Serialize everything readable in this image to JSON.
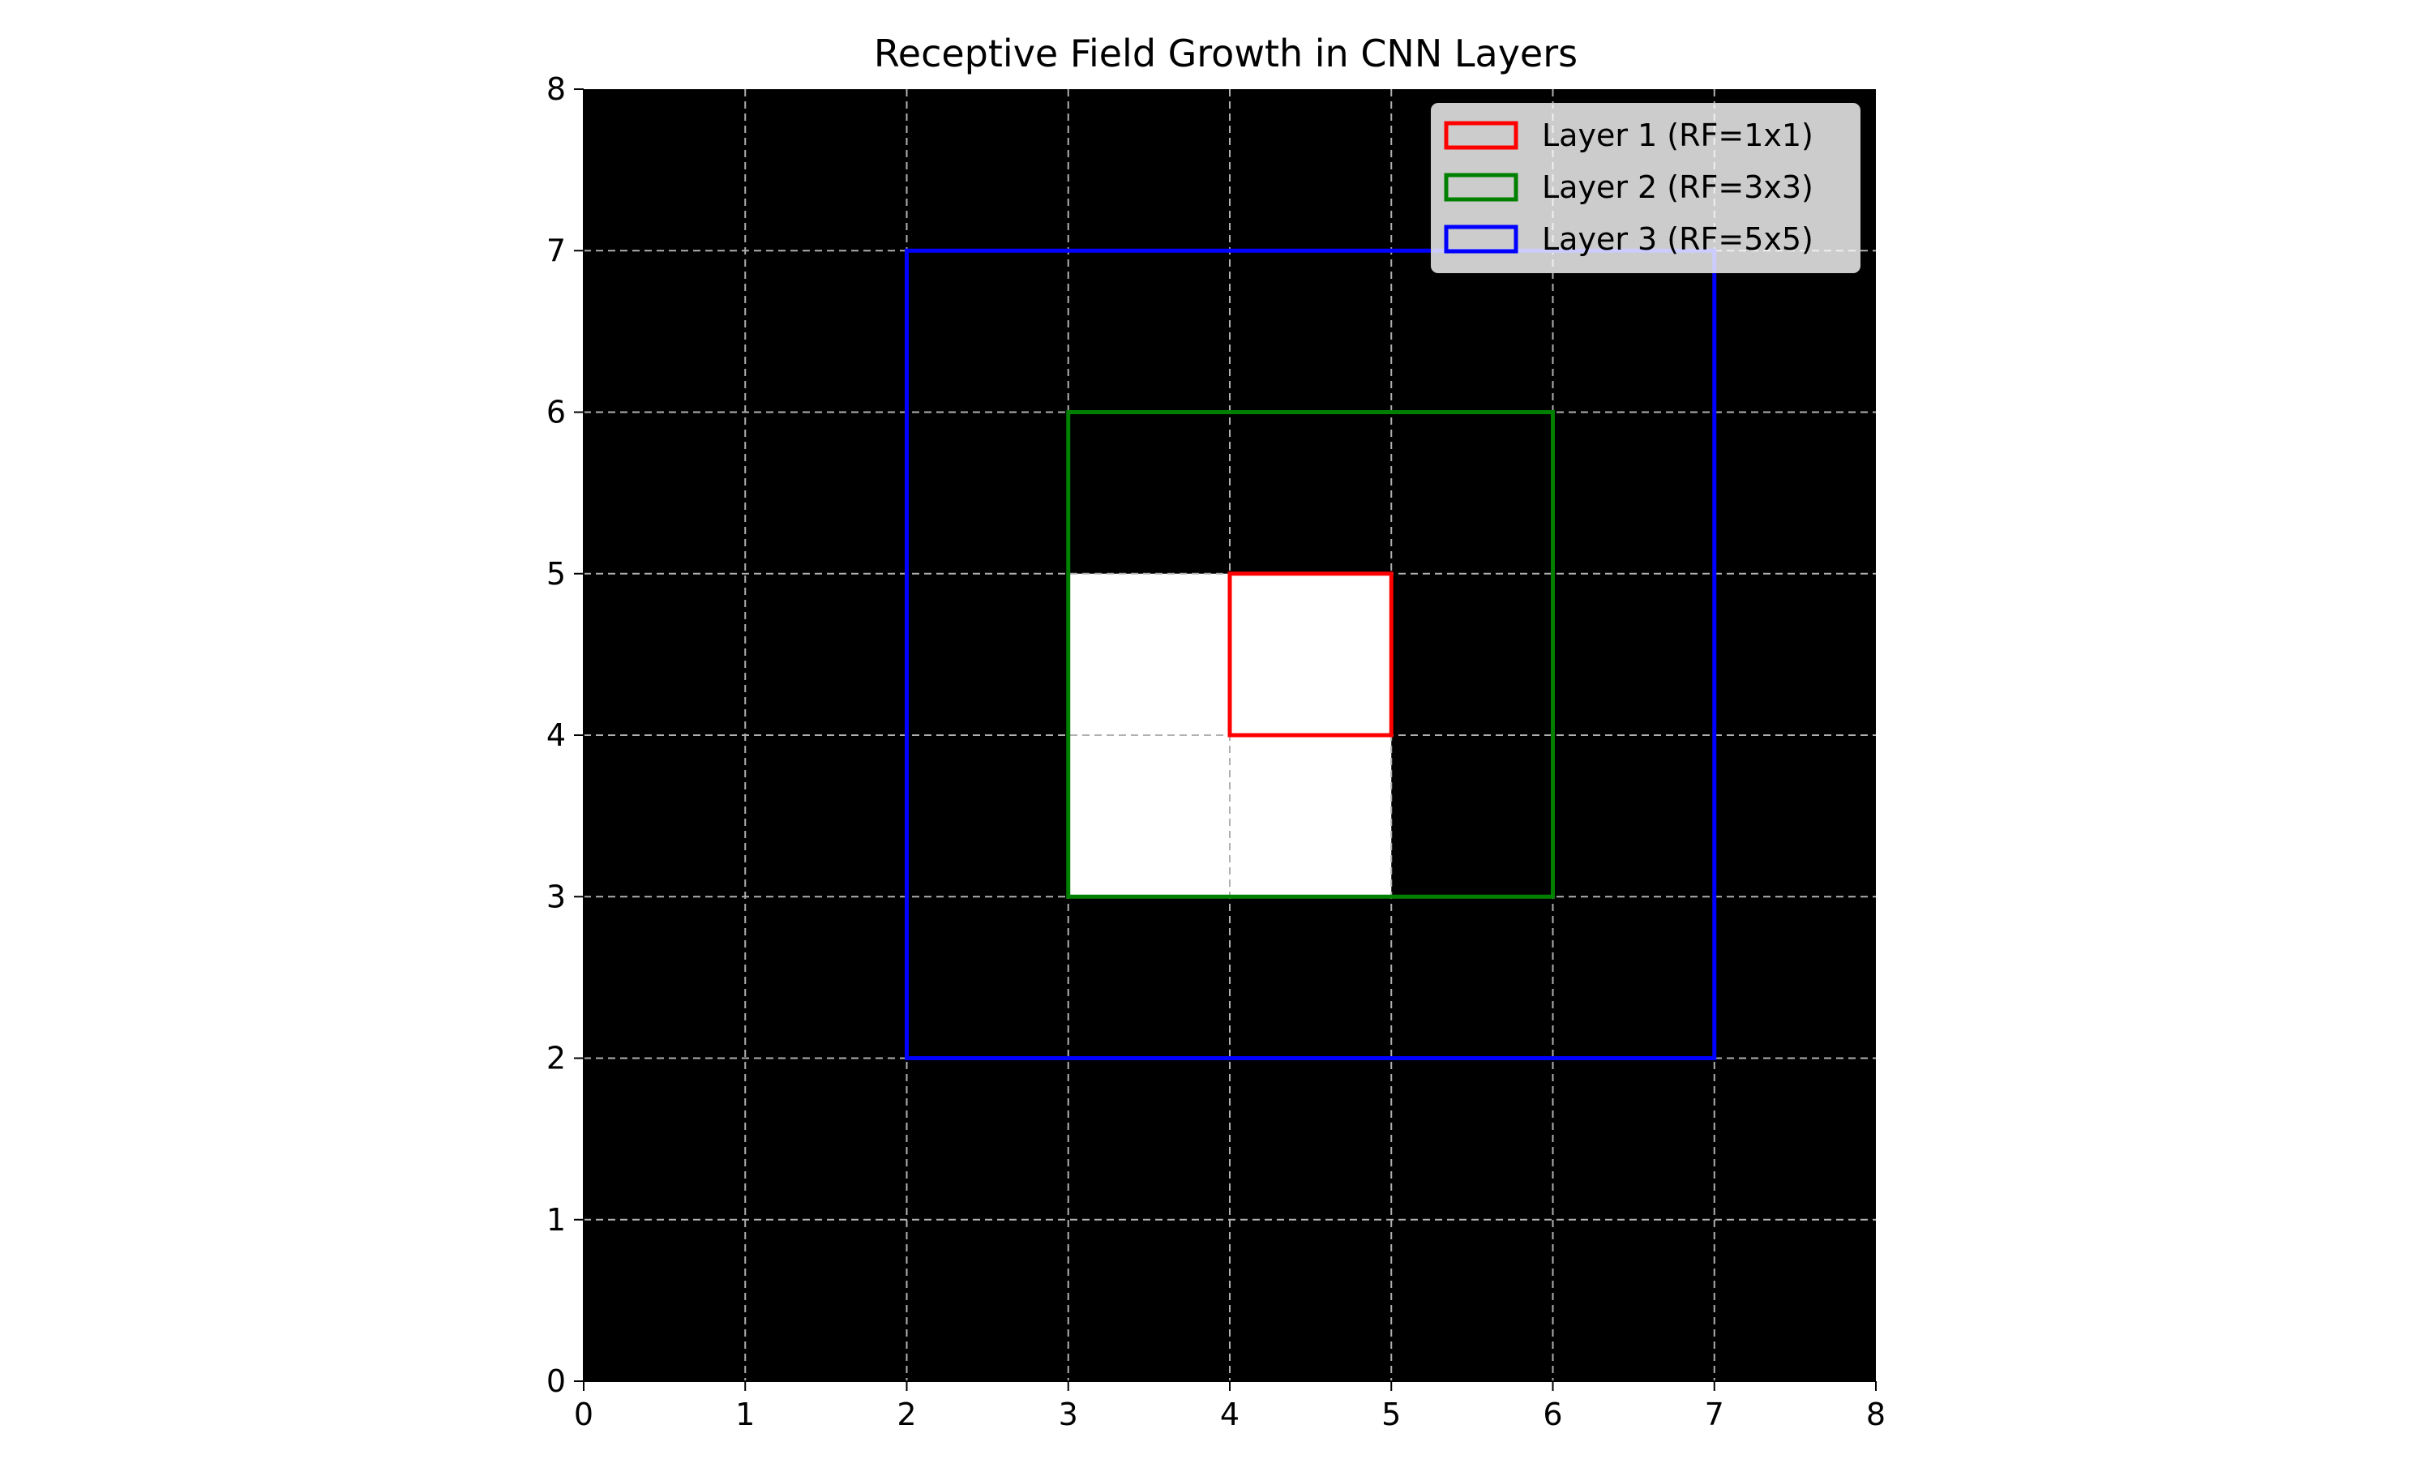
{
  "chart_data": {
    "type": "heatmap",
    "title": "Receptive Field Growth in CNN Layers",
    "xlabel": "",
    "ylabel": "",
    "xlim": [
      0,
      8
    ],
    "ylim": [
      0,
      8
    ],
    "xticks": [
      "0",
      "1",
      "2",
      "3",
      "4",
      "5",
      "6",
      "7",
      "8"
    ],
    "yticks": [
      "0",
      "1",
      "2",
      "3",
      "4",
      "5",
      "6",
      "7",
      "8"
    ],
    "grid": true,
    "grid_style": "dashed",
    "background_color": "#000000",
    "grid_color": "#b0b0b0",
    "cell_values": {
      "description_cols": "x from 0 to 8, y from 0 to 8, value 1 = white, 0 = black",
      "white_cells": [
        {
          "x": [
            3,
            4
          ],
          "y": [
            3,
            4
          ]
        },
        {
          "x": [
            4,
            5
          ],
          "y": [
            3,
            4
          ]
        },
        {
          "x": [
            3,
            4
          ],
          "y": [
            4,
            5
          ]
        },
        {
          "x": [
            4,
            5
          ],
          "y": [
            4,
            5
          ]
        }
      ]
    },
    "rectangles": [
      {
        "name": "Layer 1 (RF=1x1)",
        "x": [
          4,
          5
        ],
        "y": [
          4,
          5
        ],
        "color": "#ff0000"
      },
      {
        "name": "Layer 2 (RF=3x3)",
        "x": [
          3,
          6
        ],
        "y": [
          3,
          6
        ],
        "color": "#008000"
      },
      {
        "name": "Layer 3 (RF=5x5)",
        "x": [
          2,
          7
        ],
        "y": [
          2,
          7
        ],
        "color": "#0000ff"
      }
    ],
    "legend_placement": "top-right"
  }
}
